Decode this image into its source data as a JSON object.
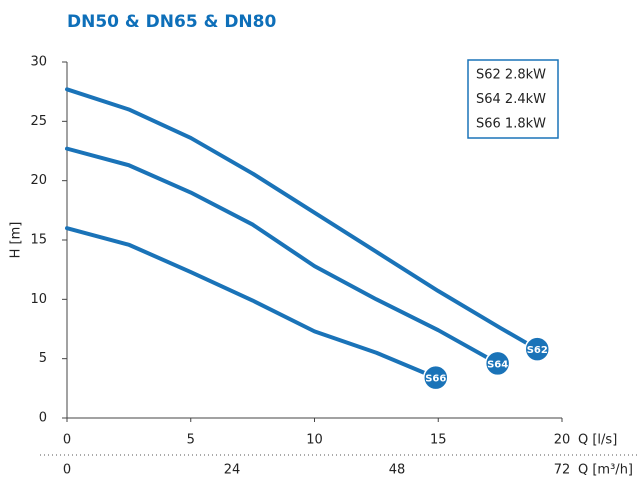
{
  "chart_data": {
    "type": "line",
    "title": "DN50 & DN65 & DN80",
    "ylabel": "H [m]",
    "xlabel": "Q [l/s]",
    "x2label": "Q [m³/h]",
    "xlim": [
      0,
      20
    ],
    "xticks": [
      0,
      5,
      10,
      15,
      20
    ],
    "x2lim": [
      0,
      72
    ],
    "x2ticks": [
      0,
      24,
      48,
      72
    ],
    "ylim": [
      0,
      30
    ],
    "yticks": [
      0,
      5,
      10,
      15,
      20,
      25,
      30
    ],
    "grid": false,
    "legend": "upper right",
    "series": [
      {
        "name": "S62 2.8kW",
        "label": "S62",
        "color": "#1a73b8",
        "x": [
          0,
          2.5,
          5,
          7.5,
          10,
          12.5,
          15,
          17.5,
          19.0
        ],
        "values": [
          27.7,
          26.0,
          23.6,
          20.6,
          17.3,
          14.0,
          10.7,
          7.6,
          5.8
        ]
      },
      {
        "name": "S64 2.4kW",
        "label": "S64",
        "color": "#1a73b8",
        "x": [
          0,
          2.5,
          5,
          7.5,
          10,
          12.5,
          15,
          17.4
        ],
        "values": [
          22.7,
          21.3,
          19.0,
          16.3,
          12.8,
          10.0,
          7.4,
          4.6
        ]
      },
      {
        "name": "S66 1.8kW",
        "label": "S66",
        "color": "#1a73b8",
        "x": [
          0,
          2.5,
          5,
          7.5,
          10,
          12.5,
          14.9
        ],
        "values": [
          16.0,
          14.6,
          12.3,
          9.9,
          7.3,
          5.5,
          3.4
        ]
      }
    ]
  }
}
